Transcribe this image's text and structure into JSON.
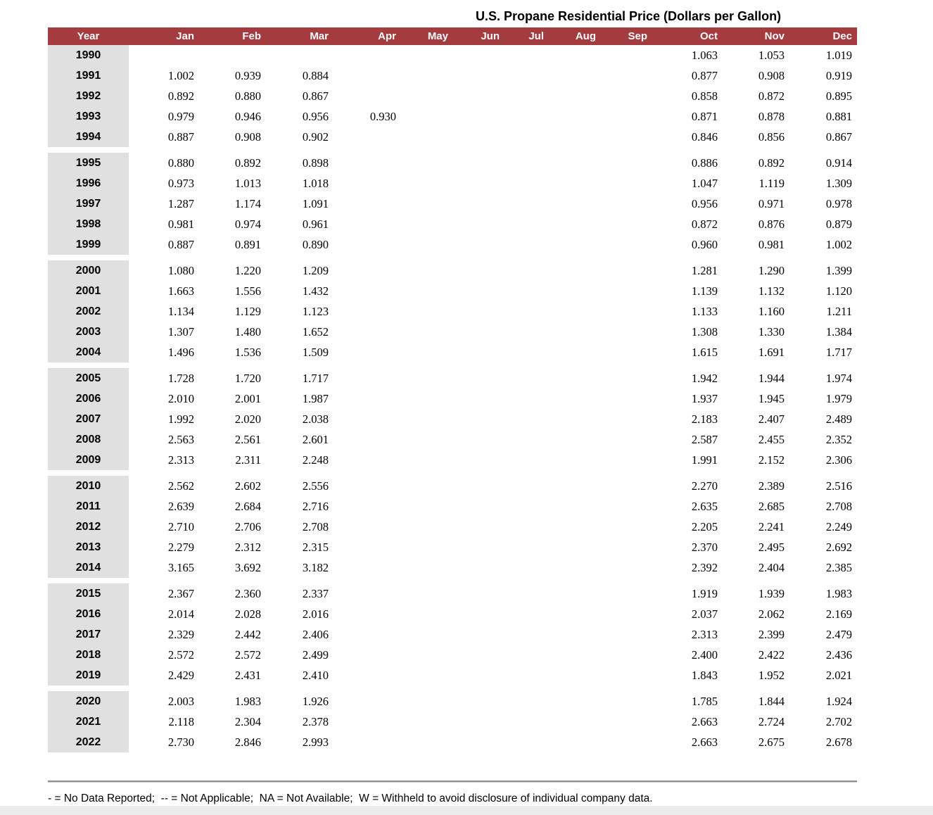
{
  "title": "U.S. Propane Residential Price (Dollars per Gallon)",
  "table": {
    "columns": [
      "Year",
      "Jan",
      "Feb",
      "Mar",
      "Apr",
      "May",
      "Jun",
      "Jul",
      "Aug",
      "Sep",
      "Oct",
      "Nov",
      "Dec"
    ],
    "groups": [
      {
        "rows": [
          {
            "year": "1990",
            "values": [
              "",
              "",
              "",
              "",
              "",
              "",
              "",
              "",
              "",
              "1.063",
              "1.053",
              "1.019"
            ]
          },
          {
            "year": "1991",
            "values": [
              "1.002",
              "0.939",
              "0.884",
              "",
              "",
              "",
              "",
              "",
              "",
              "0.877",
              "0.908",
              "0.919"
            ]
          },
          {
            "year": "1992",
            "values": [
              "0.892",
              "0.880",
              "0.867",
              "",
              "",
              "",
              "",
              "",
              "",
              "0.858",
              "0.872",
              "0.895"
            ]
          },
          {
            "year": "1993",
            "values": [
              "0.979",
              "0.946",
              "0.956",
              "0.930",
              "",
              "",
              "",
              "",
              "",
              "0.871",
              "0.878",
              "0.881"
            ]
          },
          {
            "year": "1994",
            "values": [
              "0.887",
              "0.908",
              "0.902",
              "",
              "",
              "",
              "",
              "",
              "",
              "0.846",
              "0.856",
              "0.867"
            ]
          }
        ]
      },
      {
        "rows": [
          {
            "year": "1995",
            "values": [
              "0.880",
              "0.892",
              "0.898",
              "",
              "",
              "",
              "",
              "",
              "",
              "0.886",
              "0.892",
              "0.914"
            ]
          },
          {
            "year": "1996",
            "values": [
              "0.973",
              "1.013",
              "1.018",
              "",
              "",
              "",
              "",
              "",
              "",
              "1.047",
              "1.119",
              "1.309"
            ]
          },
          {
            "year": "1997",
            "values": [
              "1.287",
              "1.174",
              "1.091",
              "",
              "",
              "",
              "",
              "",
              "",
              "0.956",
              "0.971",
              "0.978"
            ]
          },
          {
            "year": "1998",
            "values": [
              "0.981",
              "0.974",
              "0.961",
              "",
              "",
              "",
              "",
              "",
              "",
              "0.872",
              "0.876",
              "0.879"
            ]
          },
          {
            "year": "1999",
            "values": [
              "0.887",
              "0.891",
              "0.890",
              "",
              "",
              "",
              "",
              "",
              "",
              "0.960",
              "0.981",
              "1.002"
            ]
          }
        ]
      },
      {
        "rows": [
          {
            "year": "2000",
            "values": [
              "1.080",
              "1.220",
              "1.209",
              "",
              "",
              "",
              "",
              "",
              "",
              "1.281",
              "1.290",
              "1.399"
            ]
          },
          {
            "year": "2001",
            "values": [
              "1.663",
              "1.556",
              "1.432",
              "",
              "",
              "",
              "",
              "",
              "",
              "1.139",
              "1.132",
              "1.120"
            ]
          },
          {
            "year": "2002",
            "values": [
              "1.134",
              "1.129",
              "1.123",
              "",
              "",
              "",
              "",
              "",
              "",
              "1.133",
              "1.160",
              "1.211"
            ]
          },
          {
            "year": "2003",
            "values": [
              "1.307",
              "1.480",
              "1.652",
              "",
              "",
              "",
              "",
              "",
              "",
              "1.308",
              "1.330",
              "1.384"
            ]
          },
          {
            "year": "2004",
            "values": [
              "1.496",
              "1.536",
              "1.509",
              "",
              "",
              "",
              "",
              "",
              "",
              "1.615",
              "1.691",
              "1.717"
            ]
          }
        ]
      },
      {
        "rows": [
          {
            "year": "2005",
            "values": [
              "1.728",
              "1.720",
              "1.717",
              "",
              "",
              "",
              "",
              "",
              "",
              "1.942",
              "1.944",
              "1.974"
            ]
          },
          {
            "year": "2006",
            "values": [
              "2.010",
              "2.001",
              "1.987",
              "",
              "",
              "",
              "",
              "",
              "",
              "1.937",
              "1.945",
              "1.979"
            ]
          },
          {
            "year": "2007",
            "values": [
              "1.992",
              "2.020",
              "2.038",
              "",
              "",
              "",
              "",
              "",
              "",
              "2.183",
              "2.407",
              "2.489"
            ]
          },
          {
            "year": "2008",
            "values": [
              "2.563",
              "2.561",
              "2.601",
              "",
              "",
              "",
              "",
              "",
              "",
              "2.587",
              "2.455",
              "2.352"
            ]
          },
          {
            "year": "2009",
            "values": [
              "2.313",
              "2.311",
              "2.248",
              "",
              "",
              "",
              "",
              "",
              "",
              "1.991",
              "2.152",
              "2.306"
            ]
          }
        ]
      },
      {
        "rows": [
          {
            "year": "2010",
            "values": [
              "2.562",
              "2.602",
              "2.556",
              "",
              "",
              "",
              "",
              "",
              "",
              "2.270",
              "2.389",
              "2.516"
            ]
          },
          {
            "year": "2011",
            "values": [
              "2.639",
              "2.684",
              "2.716",
              "",
              "",
              "",
              "",
              "",
              "",
              "2.635",
              "2.685",
              "2.708"
            ]
          },
          {
            "year": "2012",
            "values": [
              "2.710",
              "2.706",
              "2.708",
              "",
              "",
              "",
              "",
              "",
              "",
              "2.205",
              "2.241",
              "2.249"
            ]
          },
          {
            "year": "2013",
            "values": [
              "2.279",
              "2.312",
              "2.315",
              "",
              "",
              "",
              "",
              "",
              "",
              "2.370",
              "2.495",
              "2.692"
            ]
          },
          {
            "year": "2014",
            "values": [
              "3.165",
              "3.692",
              "3.182",
              "",
              "",
              "",
              "",
              "",
              "",
              "2.392",
              "2.404",
              "2.385"
            ]
          }
        ]
      },
      {
        "rows": [
          {
            "year": "2015",
            "values": [
              "2.367",
              "2.360",
              "2.337",
              "",
              "",
              "",
              "",
              "",
              "",
              "1.919",
              "1.939",
              "1.983"
            ]
          },
          {
            "year": "2016",
            "values": [
              "2.014",
              "2.028",
              "2.016",
              "",
              "",
              "",
              "",
              "",
              "",
              "2.037",
              "2.062",
              "2.169"
            ]
          },
          {
            "year": "2017",
            "values": [
              "2.329",
              "2.442",
              "2.406",
              "",
              "",
              "",
              "",
              "",
              "",
              "2.313",
              "2.399",
              "2.479"
            ]
          },
          {
            "year": "2018",
            "values": [
              "2.572",
              "2.572",
              "2.499",
              "",
              "",
              "",
              "",
              "",
              "",
              "2.400",
              "2.422",
              "2.436"
            ]
          },
          {
            "year": "2019",
            "values": [
              "2.429",
              "2.431",
              "2.410",
              "",
              "",
              "",
              "",
              "",
              "",
              "1.843",
              "1.952",
              "2.021"
            ]
          }
        ]
      },
      {
        "rows": [
          {
            "year": "2020",
            "values": [
              "2.003",
              "1.983",
              "1.926",
              "",
              "",
              "",
              "",
              "",
              "",
              "1.785",
              "1.844",
              "1.924"
            ]
          },
          {
            "year": "2021",
            "values": [
              "2.118",
              "2.304",
              "2.378",
              "",
              "",
              "",
              "",
              "",
              "",
              "2.663",
              "2.724",
              "2.702"
            ]
          },
          {
            "year": "2022",
            "values": [
              "2.730",
              "2.846",
              "2.993",
              "",
              "",
              "",
              "",
              "",
              "",
              "2.663",
              "2.675",
              "2.678"
            ]
          }
        ]
      }
    ]
  },
  "footnote": "- = No Data Reported;  -- = Not Applicable;  NA = Not Available;  W = Withheld to avoid disclosure of individual company data.",
  "colors": {
    "header_bg": "#A33B3F",
    "year_col_bg": "#E0E0E0",
    "rule": "#8F8F8F",
    "bottom_strip": "#ECECEC"
  }
}
